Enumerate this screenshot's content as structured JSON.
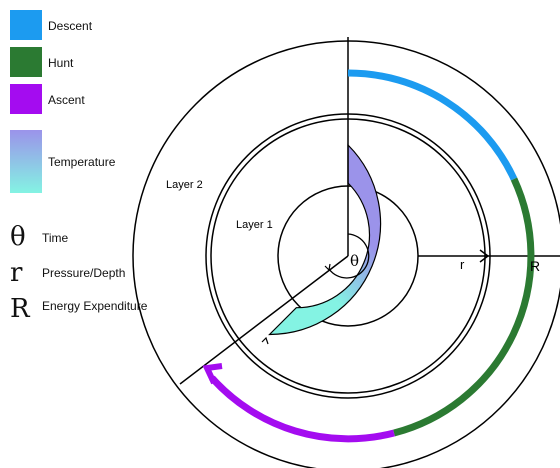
{
  "legend": {
    "phases": [
      {
        "label": "Descent",
        "color": "#1c9bf0"
      },
      {
        "label": "Hunt",
        "color": "#2b7a32"
      },
      {
        "label": "Ascent",
        "color": "#a40cf0"
      }
    ],
    "temperature": {
      "label": "Temperature",
      "gradient_top": "#9b93ea",
      "gradient_bottom": "#84f3e3"
    },
    "symbols": [
      {
        "symbol": "θ",
        "label": "Time"
      },
      {
        "symbol": "r",
        "label": "Pressure/Depth"
      },
      {
        "symbol": "R",
        "label": "Energy Expenditure"
      }
    ]
  },
  "diagram": {
    "layer2_label": "Layer 2",
    "layer1_label": "Layer 1",
    "theta_label": "θ",
    "r_label": "r",
    "R_label": "R",
    "colors": {
      "outline": "#000000",
      "descent": "#1c9bf0",
      "hunt": "#2b7a32",
      "ascent": "#a40cf0",
      "temp_warm": "#9b93ea",
      "temp_cold": "#84f3e3"
    }
  }
}
